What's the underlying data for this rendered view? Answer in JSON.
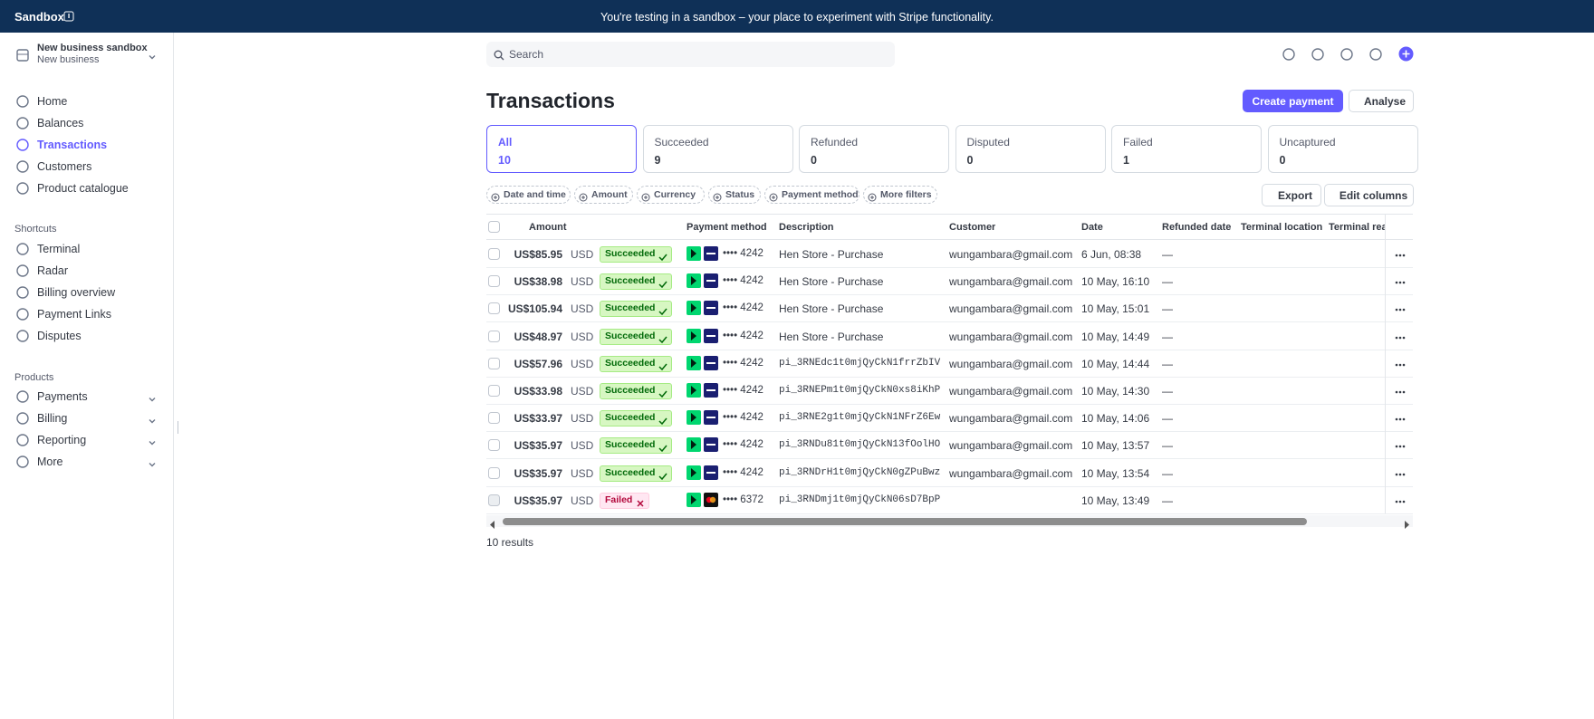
{
  "banner": {
    "label": "Sandbox",
    "message": "You're testing in a sandbox – your place to experiment with Stripe functionality."
  },
  "account": {
    "name": "New business sandbox",
    "subtitle": "New business"
  },
  "nav": [
    "Home",
    "Balances",
    "Transactions",
    "Customers",
    "Product catalogue"
  ],
  "active_nav": 2,
  "shortcuts": {
    "title": "Shortcuts",
    "items": [
      "Terminal",
      "Radar",
      "Billing overview",
      "Payment Links",
      "Disputes"
    ]
  },
  "products": {
    "title": "Products",
    "items": [
      "Payments",
      "Billing",
      "Reporting",
      "More"
    ]
  },
  "search": "Search",
  "page_title": "Transactions",
  "buttons": [
    "Create payment",
    "Analyse"
  ],
  "tabs": [
    {
      "label": "All",
      "count": 10
    },
    {
      "label": "Succeeded",
      "count": 9
    },
    {
      "label": "Refunded",
      "count": 0
    },
    {
      "label": "Disputed",
      "count": 0
    },
    {
      "label": "Failed",
      "count": 1
    },
    {
      "label": "Uncaptured",
      "count": 0
    }
  ],
  "filters": [
    "Date and time",
    "Amount",
    "Currency",
    "Status",
    "Payment method",
    "More filters"
  ],
  "actions": [
    "Export",
    "Edit columns"
  ],
  "table": {
    "columns": [
      "Amount",
      "Payment method",
      "Description",
      "Customer",
      "Date",
      "Refunded date",
      "Terminal location",
      "Terminal reader"
    ],
    "rows": [
      {
        "amount": "US$85.95",
        "currency": "USD",
        "status": "Succeeded",
        "card_brand": "visa",
        "card": "•••• 4242",
        "description": "Hen Store - Purchase",
        "customer": "wungambara@gmail.com",
        "date": "6 Jun, 08:38",
        "refunded_date": "—"
      },
      {
        "amount": "US$38.98",
        "currency": "USD",
        "status": "Succeeded",
        "card_brand": "visa",
        "card": "•••• 4242",
        "description": "Hen Store - Purchase",
        "customer": "wungambara@gmail.com",
        "date": "10 May, 16:10",
        "refunded_date": "—"
      },
      {
        "amount": "US$105.94",
        "currency": "USD",
        "status": "Succeeded",
        "card_brand": "visa",
        "card": "•••• 4242",
        "description": "Hen Store - Purchase",
        "customer": "wungambara@gmail.com",
        "date": "10 May, 15:01",
        "refunded_date": "—"
      },
      {
        "amount": "US$48.97",
        "currency": "USD",
        "status": "Succeeded",
        "card_brand": "visa",
        "card": "•••• 4242",
        "description": "Hen Store - Purchase",
        "customer": "wungambara@gmail.com",
        "date": "10 May, 14:49",
        "refunded_date": "—"
      },
      {
        "amount": "US$57.96",
        "currency": "USD",
        "status": "Succeeded",
        "card_brand": "visa",
        "card": "•••• 4242",
        "description": "pi_3RNEdc1t0mjQyCkN1frrZbIV",
        "customer": "wungambara@gmail.com",
        "date": "10 May, 14:44",
        "refunded_date": "—"
      },
      {
        "amount": "US$33.98",
        "currency": "USD",
        "status": "Succeeded",
        "card_brand": "visa",
        "card": "•••• 4242",
        "description": "pi_3RNEPm1t0mjQyCkN0xs8iKhP",
        "customer": "wungambara@gmail.com",
        "date": "10 May, 14:30",
        "refunded_date": "—"
      },
      {
        "amount": "US$33.97",
        "currency": "USD",
        "status": "Succeeded",
        "card_brand": "visa",
        "card": "•••• 4242",
        "description": "pi_3RNE2g1t0mjQyCkN1NFrZ6Ew",
        "customer": "wungambara@gmail.com",
        "date": "10 May, 14:06",
        "refunded_date": "—"
      },
      {
        "amount": "US$35.97",
        "currency": "USD",
        "status": "Succeeded",
        "card_brand": "visa",
        "card": "•••• 4242",
        "description": "pi_3RNDu81t0mjQyCkN13fOolHO",
        "customer": "wungambara@gmail.com",
        "date": "10 May, 13:57",
        "refunded_date": "—"
      },
      {
        "amount": "US$35.97",
        "currency": "USD",
        "status": "Succeeded",
        "card_brand": "visa",
        "card": "•••• 4242",
        "description": "pi_3RNDrH1t0mjQyCkN0gZPuBwz",
        "customer": "wungambara@gmail.com",
        "date": "10 May, 13:54",
        "refunded_date": "—"
      },
      {
        "amount": "US$35.97",
        "currency": "USD",
        "status": "Failed",
        "card_brand": "mastercard",
        "card": "•••• 6372",
        "description": "pi_3RNDmj1t0mjQyCkN06sD7BpP",
        "customer": "",
        "date": "10 May, 13:49",
        "refunded_date": "—"
      }
    ]
  },
  "results": "10 results"
}
